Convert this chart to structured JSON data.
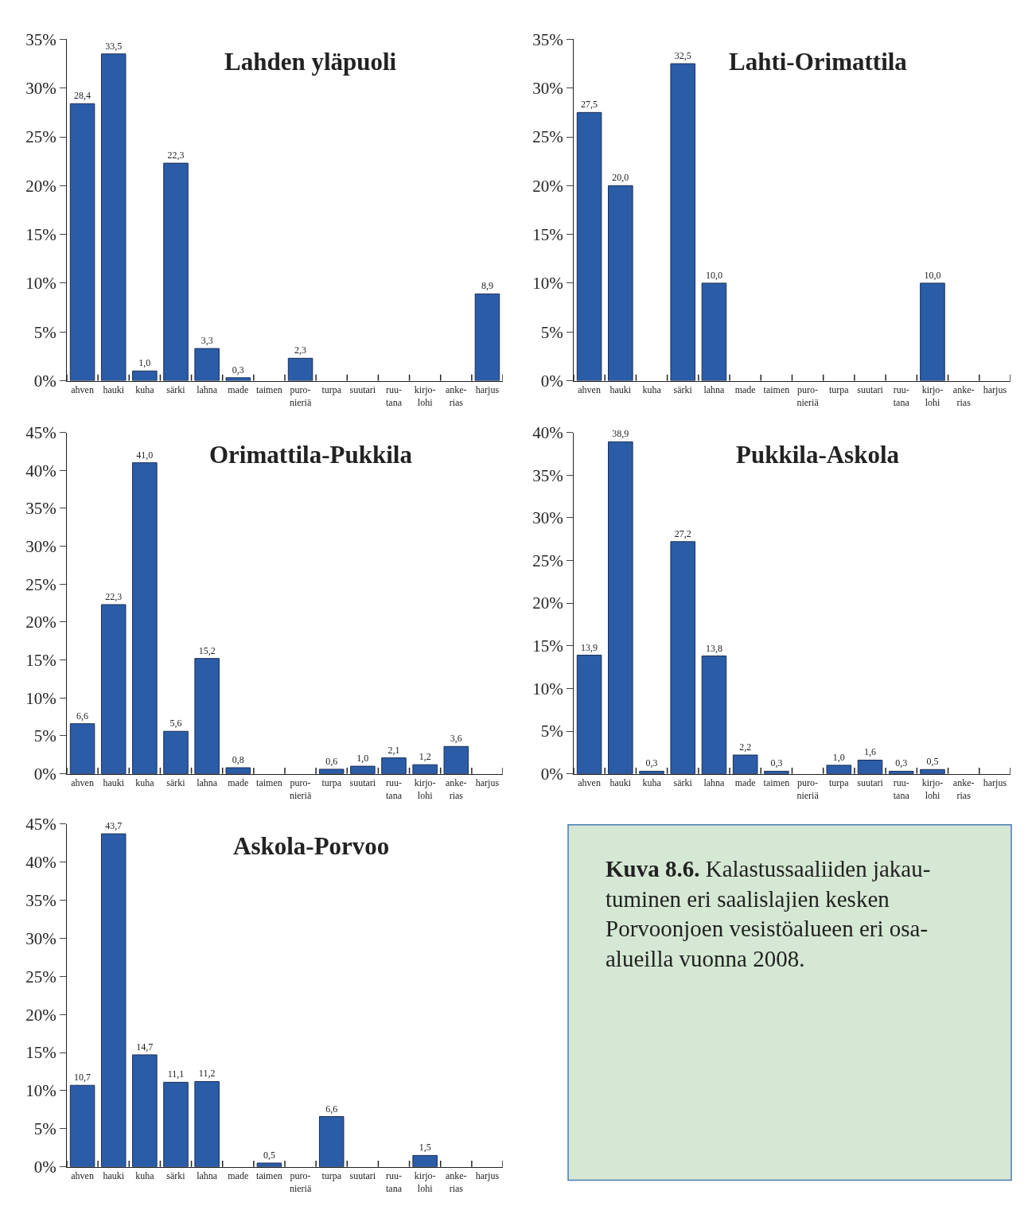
{
  "chart_data": [
    {
      "type": "bar",
      "title": "Lahden yläpuoli",
      "categories": [
        "ahven",
        "hauki",
        "kuha",
        "särki",
        "lahna",
        "made",
        "taimen",
        "puro-\nnieriä",
        "turpa",
        "suutari",
        "ruu-\ntana",
        "kirjo-\nlohi",
        "anke-\nrias",
        "harjus"
      ],
      "values": [
        28.4,
        33.5,
        1.0,
        22.3,
        3.3,
        0.3,
        null,
        2.3,
        null,
        null,
        null,
        null,
        null,
        8.9
      ],
      "value_labels": [
        "28,4",
        "33,5",
        "1,0",
        "22,3",
        "3,3",
        "0,3",
        null,
        "2,3",
        null,
        null,
        null,
        null,
        null,
        "8,9"
      ],
      "color": "#2b5ca8",
      "ylim": [
        0,
        35
      ],
      "yticks": [
        {
          "value": 0,
          "label": "0%"
        },
        {
          "value": 5,
          "label": "5%"
        },
        {
          "value": 10,
          "label": "10%"
        },
        {
          "value": 15,
          "label": "15%"
        },
        {
          "value": 20,
          "label": "20%"
        },
        {
          "value": 25,
          "label": "25%"
        },
        {
          "value": 30,
          "label": "30%"
        },
        {
          "value": 35,
          "label": "35%"
        }
      ]
    },
    {
      "type": "bar",
      "title": "Lahti-Orimattila",
      "categories": [
        "ahven",
        "hauki",
        "kuha",
        "särki",
        "lahna",
        "made",
        "taimen",
        "puro-\nnieriä",
        "turpa",
        "suutari",
        "ruu-\ntana",
        "kirjo-\nlohi",
        "anke-\nrias",
        "harjus"
      ],
      "values": [
        27.5,
        20.0,
        null,
        32.5,
        10.0,
        null,
        null,
        null,
        null,
        null,
        null,
        10.0,
        null,
        null
      ],
      "value_labels": [
        "27,5",
        "20,0",
        null,
        "32,5",
        "10,0",
        null,
        null,
        null,
        null,
        null,
        null,
        "10,0",
        null,
        null
      ],
      "color": "#2b5ca8",
      "ylim": [
        0,
        35
      ],
      "yticks": [
        {
          "value": 0,
          "label": "0%"
        },
        {
          "value": 5,
          "label": "5%"
        },
        {
          "value": 10,
          "label": "10%"
        },
        {
          "value": 15,
          "label": "15%"
        },
        {
          "value": 20,
          "label": "20%"
        },
        {
          "value": 25,
          "label": "25%"
        },
        {
          "value": 30,
          "label": "30%"
        },
        {
          "value": 35,
          "label": "35%"
        }
      ]
    },
    {
      "type": "bar",
      "title": "Orimattila-Pukkila",
      "categories": [
        "ahven",
        "hauki",
        "kuha",
        "särki",
        "lahna",
        "made",
        "taimen",
        "puro-\nnieriä",
        "turpa",
        "suutari",
        "ruu-\ntana",
        "kirjo-\nlohi",
        "anke-\nrias",
        "harjus"
      ],
      "values": [
        6.6,
        22.3,
        41.0,
        5.6,
        15.2,
        0.8,
        null,
        null,
        0.6,
        1.0,
        2.1,
        1.2,
        3.6,
        null
      ],
      "value_labels": [
        "6,6",
        "22,3",
        "41,0",
        "5,6",
        "15,2",
        "0,8",
        null,
        null,
        "0,6",
        "1,0",
        "2,1",
        "1,2",
        "3,6",
        null
      ],
      "color": "#2b5ca8",
      "ylim": [
        0,
        45
      ],
      "yticks": [
        {
          "value": 0,
          "label": "0%"
        },
        {
          "value": 5,
          "label": "5%"
        },
        {
          "value": 10,
          "label": "10%"
        },
        {
          "value": 15,
          "label": "15%"
        },
        {
          "value": 20,
          "label": "20%"
        },
        {
          "value": 25,
          "label": "25%"
        },
        {
          "value": 30,
          "label": "30%"
        },
        {
          "value": 35,
          "label": "35%"
        },
        {
          "value": 40,
          "label": "40%"
        },
        {
          "value": 45,
          "label": "45%"
        }
      ]
    },
    {
      "type": "bar",
      "title": "Pukkila-Askola",
      "categories": [
        "ahven",
        "hauki",
        "kuha",
        "särki",
        "lahna",
        "made",
        "taimen",
        "puro-\nnieriä",
        "turpa",
        "suutari",
        "ruu-\ntana",
        "kirjo-\nlohi",
        "anke-\nrias",
        "harjus"
      ],
      "values": [
        13.9,
        38.9,
        0.3,
        27.2,
        13.8,
        2.2,
        0.3,
        null,
        1.0,
        1.6,
        0.3,
        0.5,
        null,
        null
      ],
      "value_labels": [
        "13,9",
        "38,9",
        "0,3",
        "27,2",
        "13,8",
        "2,2",
        "0,3",
        null,
        "1,0",
        "1,6",
        "0,3",
        "0,5",
        null,
        null
      ],
      "color": "#2b5ca8",
      "ylim": [
        0,
        40
      ],
      "yticks": [
        {
          "value": 0,
          "label": "0%"
        },
        {
          "value": 5,
          "label": "5%"
        },
        {
          "value": 10,
          "label": "10%"
        },
        {
          "value": 15,
          "label": "15%"
        },
        {
          "value": 20,
          "label": "20%"
        },
        {
          "value": 25,
          "label": "25%"
        },
        {
          "value": 30,
          "label": "30%"
        },
        {
          "value": 35,
          "label": "35%"
        },
        {
          "value": 40,
          "label": "40%"
        }
      ]
    },
    {
      "type": "bar",
      "title": "Askola-Porvoo",
      "categories": [
        "ahven",
        "hauki",
        "kuha",
        "särki",
        "lahna",
        "made",
        "taimen",
        "puro-\nnieriä",
        "turpa",
        "suutari",
        "ruu-\ntana",
        "kirjo-\nlohi",
        "anke-\nrias",
        "harjus"
      ],
      "values": [
        10.7,
        43.7,
        14.7,
        11.1,
        11.2,
        null,
        0.5,
        null,
        6.6,
        null,
        null,
        1.5,
        null,
        null
      ],
      "value_labels": [
        "10,7",
        "43,7",
        "14,7",
        "11,1",
        "11,2",
        null,
        "0,5",
        null,
        "6,6",
        null,
        null,
        "1,5",
        null,
        null
      ],
      "color": "#2b5ca8",
      "ylim": [
        0,
        45
      ],
      "yticks": [
        {
          "value": 0,
          "label": "0%"
        },
        {
          "value": 5,
          "label": "5%"
        },
        {
          "value": 10,
          "label": "10%"
        },
        {
          "value": 15,
          "label": "15%"
        },
        {
          "value": 20,
          "label": "20%"
        },
        {
          "value": 25,
          "label": "25%"
        },
        {
          "value": 30,
          "label": "30%"
        },
        {
          "value": 35,
          "label": "35%"
        },
        {
          "value": 40,
          "label": "40%"
        },
        {
          "value": 45,
          "label": "45%"
        }
      ]
    },
    {
      "type": "other",
      "title": "Kuva 8.6.",
      "annotations": [
        "Kalastussaaliiden jakau-\ntuminen eri saalislajien kesken\nPorvoonjoen vesistöalueen eri osa-\nalueilla vuonna 2008."
      ],
      "color": "#d5e8d4"
    }
  ]
}
